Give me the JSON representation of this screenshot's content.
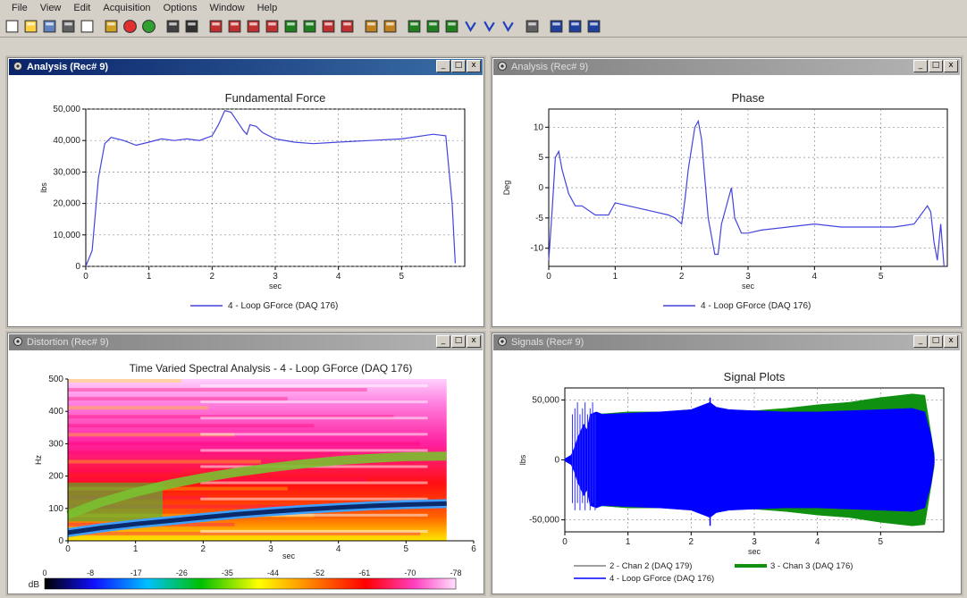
{
  "menu": {
    "items": [
      "File",
      "View",
      "Edit",
      "Acquisition",
      "Options",
      "Window",
      "Help"
    ]
  },
  "toolbar": {
    "icons": [
      "new-icon",
      "open-icon",
      "save-icon",
      "print-icon",
      "print-preview-icon",
      "settings-icon",
      "stop-icon",
      "go-icon",
      "zoom-icon",
      "fit-icon",
      "plot1-icon",
      "plot2-icon",
      "plot3-icon",
      "plot4-icon",
      "plot5-icon",
      "plot6-icon",
      "plot7-icon",
      "plot8-icon",
      "export-icon",
      "import-icon",
      "analysis1-icon",
      "analysis2-icon",
      "analysis3-icon",
      "curve1-icon",
      "curve2-icon",
      "curve3-icon",
      "tools-icon",
      "tile-h-icon",
      "tile-v-icon",
      "cascade-icon"
    ]
  },
  "colors": {
    "active_title": "#0a246a",
    "line_blue": "#0000ff",
    "green": "#109010",
    "dark_blue": "#0a2a6a"
  },
  "panels": [
    {
      "id": "force",
      "title": "Analysis (Rec# 9)",
      "active": true
    },
    {
      "id": "phase",
      "title": "Analysis (Rec# 9)",
      "active": false
    },
    {
      "id": "spectral",
      "title": "Distortion (Rec# 9)",
      "active": false
    },
    {
      "id": "signals",
      "title": "Signals (Rec# 9)",
      "active": false
    }
  ],
  "chart_data": [
    {
      "type": "line",
      "title": "Fundamental Force",
      "xlabel": "sec",
      "ylabel": "lbs",
      "xlim": [
        0,
        6
      ],
      "ylim": [
        0,
        50000
      ],
      "xticks": [
        "0",
        "1",
        "2",
        "3",
        "4",
        "5"
      ],
      "yticks": [
        "0",
        "10,000",
        "20,000",
        "30,000",
        "40,000",
        "50,000"
      ],
      "ytick_values": [
        0,
        10000,
        20000,
        30000,
        40000,
        50000
      ],
      "grid": true,
      "series": [
        {
          "name": "4 - Loop GForce (DAQ 176)",
          "color": "#4444dd",
          "x": [
            0,
            0.1,
            0.2,
            0.3,
            0.4,
            0.6,
            0.8,
            1.0,
            1.2,
            1.4,
            1.6,
            1.8,
            2.0,
            2.1,
            2.2,
            2.3,
            2.4,
            2.5,
            2.55,
            2.6,
            2.7,
            2.8,
            3.0,
            3.3,
            3.6,
            4.0,
            4.5,
            5.0,
            5.5,
            5.7,
            5.8,
            5.85
          ],
          "y": [
            0,
            5000,
            28000,
            39000,
            41000,
            40000,
            38500,
            39500,
            40500,
            40000,
            40500,
            40000,
            41500,
            45000,
            49500,
            49000,
            46000,
            43000,
            42000,
            45000,
            44500,
            42500,
            40500,
            39500,
            39000,
            39500,
            40000,
            40500,
            42000,
            41500,
            20000,
            1000
          ]
        }
      ],
      "legend_position": "bottom"
    },
    {
      "type": "line",
      "title": "Phase",
      "xlabel": "sec",
      "ylabel": "Deg",
      "xlim": [
        0,
        6
      ],
      "ylim": [
        -13,
        13
      ],
      "xticks": [
        "0",
        "1",
        "2",
        "3",
        "4",
        "5"
      ],
      "yticks": [
        "-10",
        "-5",
        "0",
        "5",
        "10"
      ],
      "ytick_values": [
        -10,
        -5,
        0,
        5,
        10
      ],
      "grid": true,
      "series": [
        {
          "name": "4 - Loop GForce (DAQ 176)",
          "color": "#4444dd",
          "x": [
            0,
            0.05,
            0.1,
            0.15,
            0.2,
            0.3,
            0.4,
            0.5,
            0.7,
            0.9,
            1.0,
            1.2,
            1.4,
            1.6,
            1.8,
            1.9,
            2.0,
            2.05,
            2.1,
            2.2,
            2.25,
            2.3,
            2.4,
            2.5,
            2.55,
            2.6,
            2.7,
            2.75,
            2.8,
            2.9,
            3.0,
            3.2,
            3.6,
            4.0,
            4.4,
            4.8,
            5.2,
            5.5,
            5.7,
            5.75,
            5.8,
            5.85,
            5.9,
            5.95
          ],
          "y": [
            -12,
            -4,
            5,
            6,
            3,
            -1,
            -3,
            -3,
            -4.5,
            -4.5,
            -2.5,
            -3,
            -3.5,
            -4,
            -4.5,
            -5,
            -6,
            -2,
            3,
            10,
            11,
            8,
            -5,
            -11,
            -11,
            -6,
            -2,
            0,
            -5,
            -7.5,
            -7.5,
            -7,
            -6.5,
            -6,
            -6.5,
            -6.5,
            -6.5,
            -6,
            -3,
            -4,
            -9,
            -12,
            -6,
            -13
          ]
        }
      ],
      "legend_position": "bottom"
    },
    {
      "type": "heatmap",
      "title": "Time Varied Spectral Analysis - 4 - Loop GForce (DAQ 176)",
      "xlabel": "sec",
      "ylabel": "Hz",
      "xlim": [
        0,
        6
      ],
      "ylim": [
        0,
        500
      ],
      "xticks": [
        "0",
        "1",
        "2",
        "3",
        "4",
        "5",
        "6"
      ],
      "yticks": [
        "0",
        "100",
        "200",
        "300",
        "400",
        "500"
      ],
      "ytick_values": [
        0,
        100,
        200,
        300,
        400,
        500
      ],
      "colorbar_label": "dB",
      "colorbar_ticks": [
        "0",
        "-8",
        "-17",
        "-26",
        "-35",
        "-44",
        "-52",
        "-61",
        "-70",
        "-78"
      ],
      "fundamental": {
        "x": [
          0,
          0.5,
          1,
          1.5,
          2,
          2.5,
          3,
          3.5,
          4,
          4.5,
          5,
          5.6
        ],
        "y": [
          25,
          40,
          52,
          62,
          72,
          82,
          90,
          97,
          103,
          108,
          112,
          115
        ]
      },
      "harmonic2": {
        "x": [
          0,
          0.5,
          1,
          1.5,
          2,
          2.5,
          3,
          3.5,
          4,
          4.5,
          5,
          5.6
        ],
        "y": [
          80,
          120,
          150,
          175,
          195,
          212,
          226,
          238,
          248,
          255,
          260,
          262
        ]
      }
    },
    {
      "type": "area",
      "title": "Signal Plots",
      "xlabel": "sec",
      "ylabel": "lbs",
      "xlim": [
        0,
        6
      ],
      "ylim": [
        -60000,
        60000
      ],
      "xticks": [
        "0",
        "1",
        "2",
        "3",
        "4",
        "5"
      ],
      "yticks": [
        "-50,000",
        "0",
        "50,000"
      ],
      "ytick_values": [
        -50000,
        0,
        50000
      ],
      "grid": true,
      "series": [
        {
          "name": "2 - Chan 2 (DAQ 179)",
          "color": "#808080"
        },
        {
          "name": "3 - Chan 3 (DAQ 176)",
          "color": "#109010",
          "x": [
            0.5,
            1,
            2,
            3,
            3.5,
            4,
            4.5,
            5,
            5.5,
            5.7,
            5.85
          ],
          "y": [
            38000,
            40000,
            40000,
            41000,
            43000,
            46000,
            48000,
            52000,
            55000,
            54000,
            5000
          ]
        },
        {
          "name": "4 - Loop GForce (DAQ 176)",
          "color": "#0000ff",
          "x": [
            0,
            0.1,
            0.15,
            0.2,
            0.3,
            0.35,
            0.4,
            0.5,
            0.6,
            1.0,
            1.5,
            2.0,
            2.2,
            2.3,
            2.4,
            2.6,
            3.0,
            3.5,
            4.0,
            4.5,
            5.0,
            5.5,
            5.7,
            5.8,
            5.85
          ],
          "y": [
            1000,
            4000,
            10000,
            18000,
            30000,
            25000,
            38000,
            40000,
            38000,
            39000,
            40000,
            42000,
            46000,
            48000,
            44000,
            42000,
            41000,
            40000,
            40000,
            41000,
            42000,
            43000,
            40000,
            20000,
            2000
          ]
        }
      ],
      "legend_position": "bottom"
    }
  ]
}
